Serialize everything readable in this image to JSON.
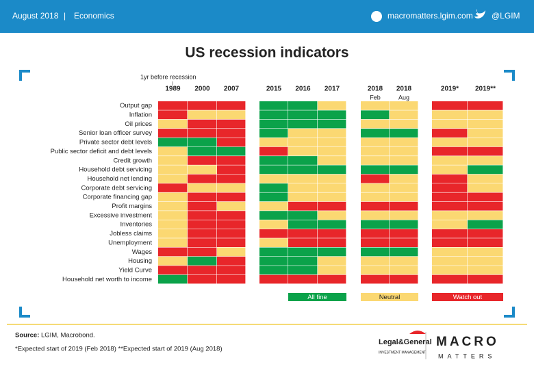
{
  "header": {
    "date": "August 2018",
    "separator": "|",
    "section": "Economics",
    "website": "macromatters.lgim.com",
    "handle": "@LGIM"
  },
  "chart_data": {
    "type": "heatmap",
    "title": "US recession indicators",
    "note": "1yr before recession",
    "legend": [
      {
        "name": "All fine",
        "color": "#0ba24a"
      },
      {
        "name": "Neutral",
        "color": "#fbd872"
      },
      {
        "name": "Watch out",
        "color": "#e8262a"
      }
    ],
    "columns": [
      {
        "label": "1989"
      },
      {
        "label": "2000"
      },
      {
        "label": "2007"
      },
      {
        "label": "2015"
      },
      {
        "label": "2016"
      },
      {
        "label": "2017"
      },
      {
        "label": "2018",
        "sub": "Feb"
      },
      {
        "label": "2018",
        "sub": "Aug"
      },
      {
        "label": "2019*"
      },
      {
        "label": "2019**"
      }
    ],
    "rows": [
      {
        "label": "Output gap",
        "cells": [
          2,
          2,
          2,
          0,
          0,
          1,
          1,
          1,
          2,
          2
        ]
      },
      {
        "label": "Inflation",
        "cells": [
          2,
          1,
          1,
          0,
          0,
          0,
          0,
          1,
          1,
          1
        ]
      },
      {
        "label": "Oil prices",
        "cells": [
          1,
          2,
          2,
          0,
          0,
          0,
          1,
          1,
          1,
          1
        ]
      },
      {
        "label": "Senior loan officer survey",
        "cells": [
          2,
          2,
          2,
          0,
          1,
          1,
          0,
          0,
          2,
          1
        ]
      },
      {
        "label": "Private sector debt levels",
        "cells": [
          0,
          0,
          2,
          1,
          1,
          1,
          1,
          1,
          1,
          1
        ]
      },
      {
        "label": "Public sector deficit and debt levels",
        "cells": [
          1,
          0,
          0,
          2,
          1,
          1,
          1,
          1,
          2,
          2
        ]
      },
      {
        "label": "Credit growth",
        "cells": [
          1,
          2,
          2,
          0,
          0,
          1,
          1,
          1,
          1,
          1
        ]
      },
      {
        "label": "Household debt servicing",
        "cells": [
          1,
          1,
          2,
          0,
          0,
          0,
          0,
          0,
          1,
          0
        ]
      },
      {
        "label": "Household net lending",
        "cells": [
          1,
          2,
          2,
          1,
          1,
          1,
          2,
          1,
          2,
          1
        ]
      },
      {
        "label": "Corporate debt servicing",
        "cells": [
          2,
          1,
          1,
          0,
          1,
          1,
          1,
          1,
          2,
          1
        ]
      },
      {
        "label": "Corporate financing gap",
        "cells": [
          1,
          2,
          2,
          0,
          1,
          1,
          1,
          1,
          2,
          2
        ]
      },
      {
        "label": "Profit margins",
        "cells": [
          1,
          2,
          1,
          1,
          2,
          2,
          2,
          2,
          2,
          2
        ]
      },
      {
        "label": "Excessive investment",
        "cells": [
          1,
          2,
          2,
          0,
          0,
          1,
          1,
          1,
          1,
          1
        ]
      },
      {
        "label": "Inventories",
        "cells": [
          1,
          2,
          2,
          1,
          0,
          0,
          0,
          0,
          1,
          0
        ]
      },
      {
        "label": "Jobless claims",
        "cells": [
          1,
          2,
          2,
          2,
          2,
          2,
          2,
          2,
          2,
          2
        ]
      },
      {
        "label": "Unemployment",
        "cells": [
          1,
          2,
          2,
          1,
          2,
          2,
          2,
          2,
          2,
          2
        ]
      },
      {
        "label": "Wages",
        "cells": [
          2,
          2,
          1,
          0,
          0,
          0,
          0,
          0,
          1,
          1
        ]
      },
      {
        "label": "Housing",
        "cells": [
          1,
          0,
          2,
          0,
          0,
          1,
          1,
          1,
          1,
          1
        ]
      },
      {
        "label": "Yield Curve",
        "cells": [
          2,
          2,
          2,
          0,
          0,
          1,
          1,
          1,
          1,
          1
        ]
      },
      {
        "label": "Household net worth to income",
        "cells": [
          0,
          2,
          2,
          2,
          2,
          2,
          2,
          2,
          2,
          2
        ]
      }
    ]
  },
  "footer": {
    "source_label": "Source:",
    "source": "LGIM, Macrobond.",
    "footnote": "*Expected start of 2019 (Feb 2018)  **Expected start of 2019 (Aug 2018)",
    "logo_main": "Legal&General",
    "logo_sub": "INVESTMENT MANAGEMENT",
    "brand_top": "MACRO",
    "brand_bottom": "MATTERS"
  }
}
